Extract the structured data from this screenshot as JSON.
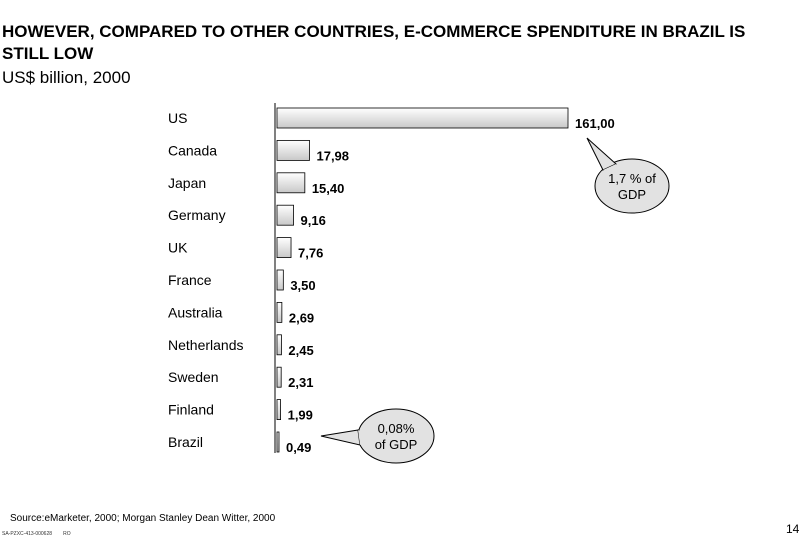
{
  "header": {
    "title": "HOWEVER, COMPARED TO OTHER COUNTRIES, E-COMMERCE SPENDITURE IN BRAZIL IS STILL LOW",
    "subtitle": "US$ billion, 2000"
  },
  "chart_data": {
    "type": "bar",
    "orientation": "horizontal",
    "title": "HOWEVER, COMPARED TO OTHER COUNTRIES, E-COMMERCE SPENDITURE IN BRAZIL IS STILL LOW",
    "ylabel": "US$ billion, 2000",
    "categories": [
      "US",
      "Canada",
      "Japan",
      "Germany",
      "UK",
      "France",
      "Australia",
      "Netherlands",
      "Sweden",
      "Finland",
      "Brazil"
    ],
    "values": [
      161.0,
      17.98,
      15.4,
      9.16,
      7.76,
      3.5,
      2.69,
      2.45,
      2.31,
      1.99,
      0.49
    ],
    "value_labels": [
      "161,00",
      "17,98",
      "15,40",
      "9,16",
      "7,76",
      "3,50",
      "2,69",
      "2,45",
      "2,31",
      "1,99",
      "0,49"
    ],
    "xlim": [
      0,
      161
    ],
    "grid": false,
    "annotations": [
      {
        "target": "US",
        "lines": [
          "1,7 % of",
          "GDP"
        ]
      },
      {
        "target": "Brazil",
        "lines": [
          "0,08%",
          "of GDP"
        ]
      }
    ]
  },
  "footer": {
    "source": "Source:eMarketer, 2000; Morgan Stanley Dean Witter, 2000",
    "doc_code": "SA-PZXC-413-000628",
    "initials": "RO",
    "page_number": "14"
  },
  "colors": {
    "bar_fill_light": "#ffffff",
    "bar_fill_dark": "#c8c8c8",
    "bar_stroke": "#000000",
    "callout_fill": "#e2e2e2"
  }
}
